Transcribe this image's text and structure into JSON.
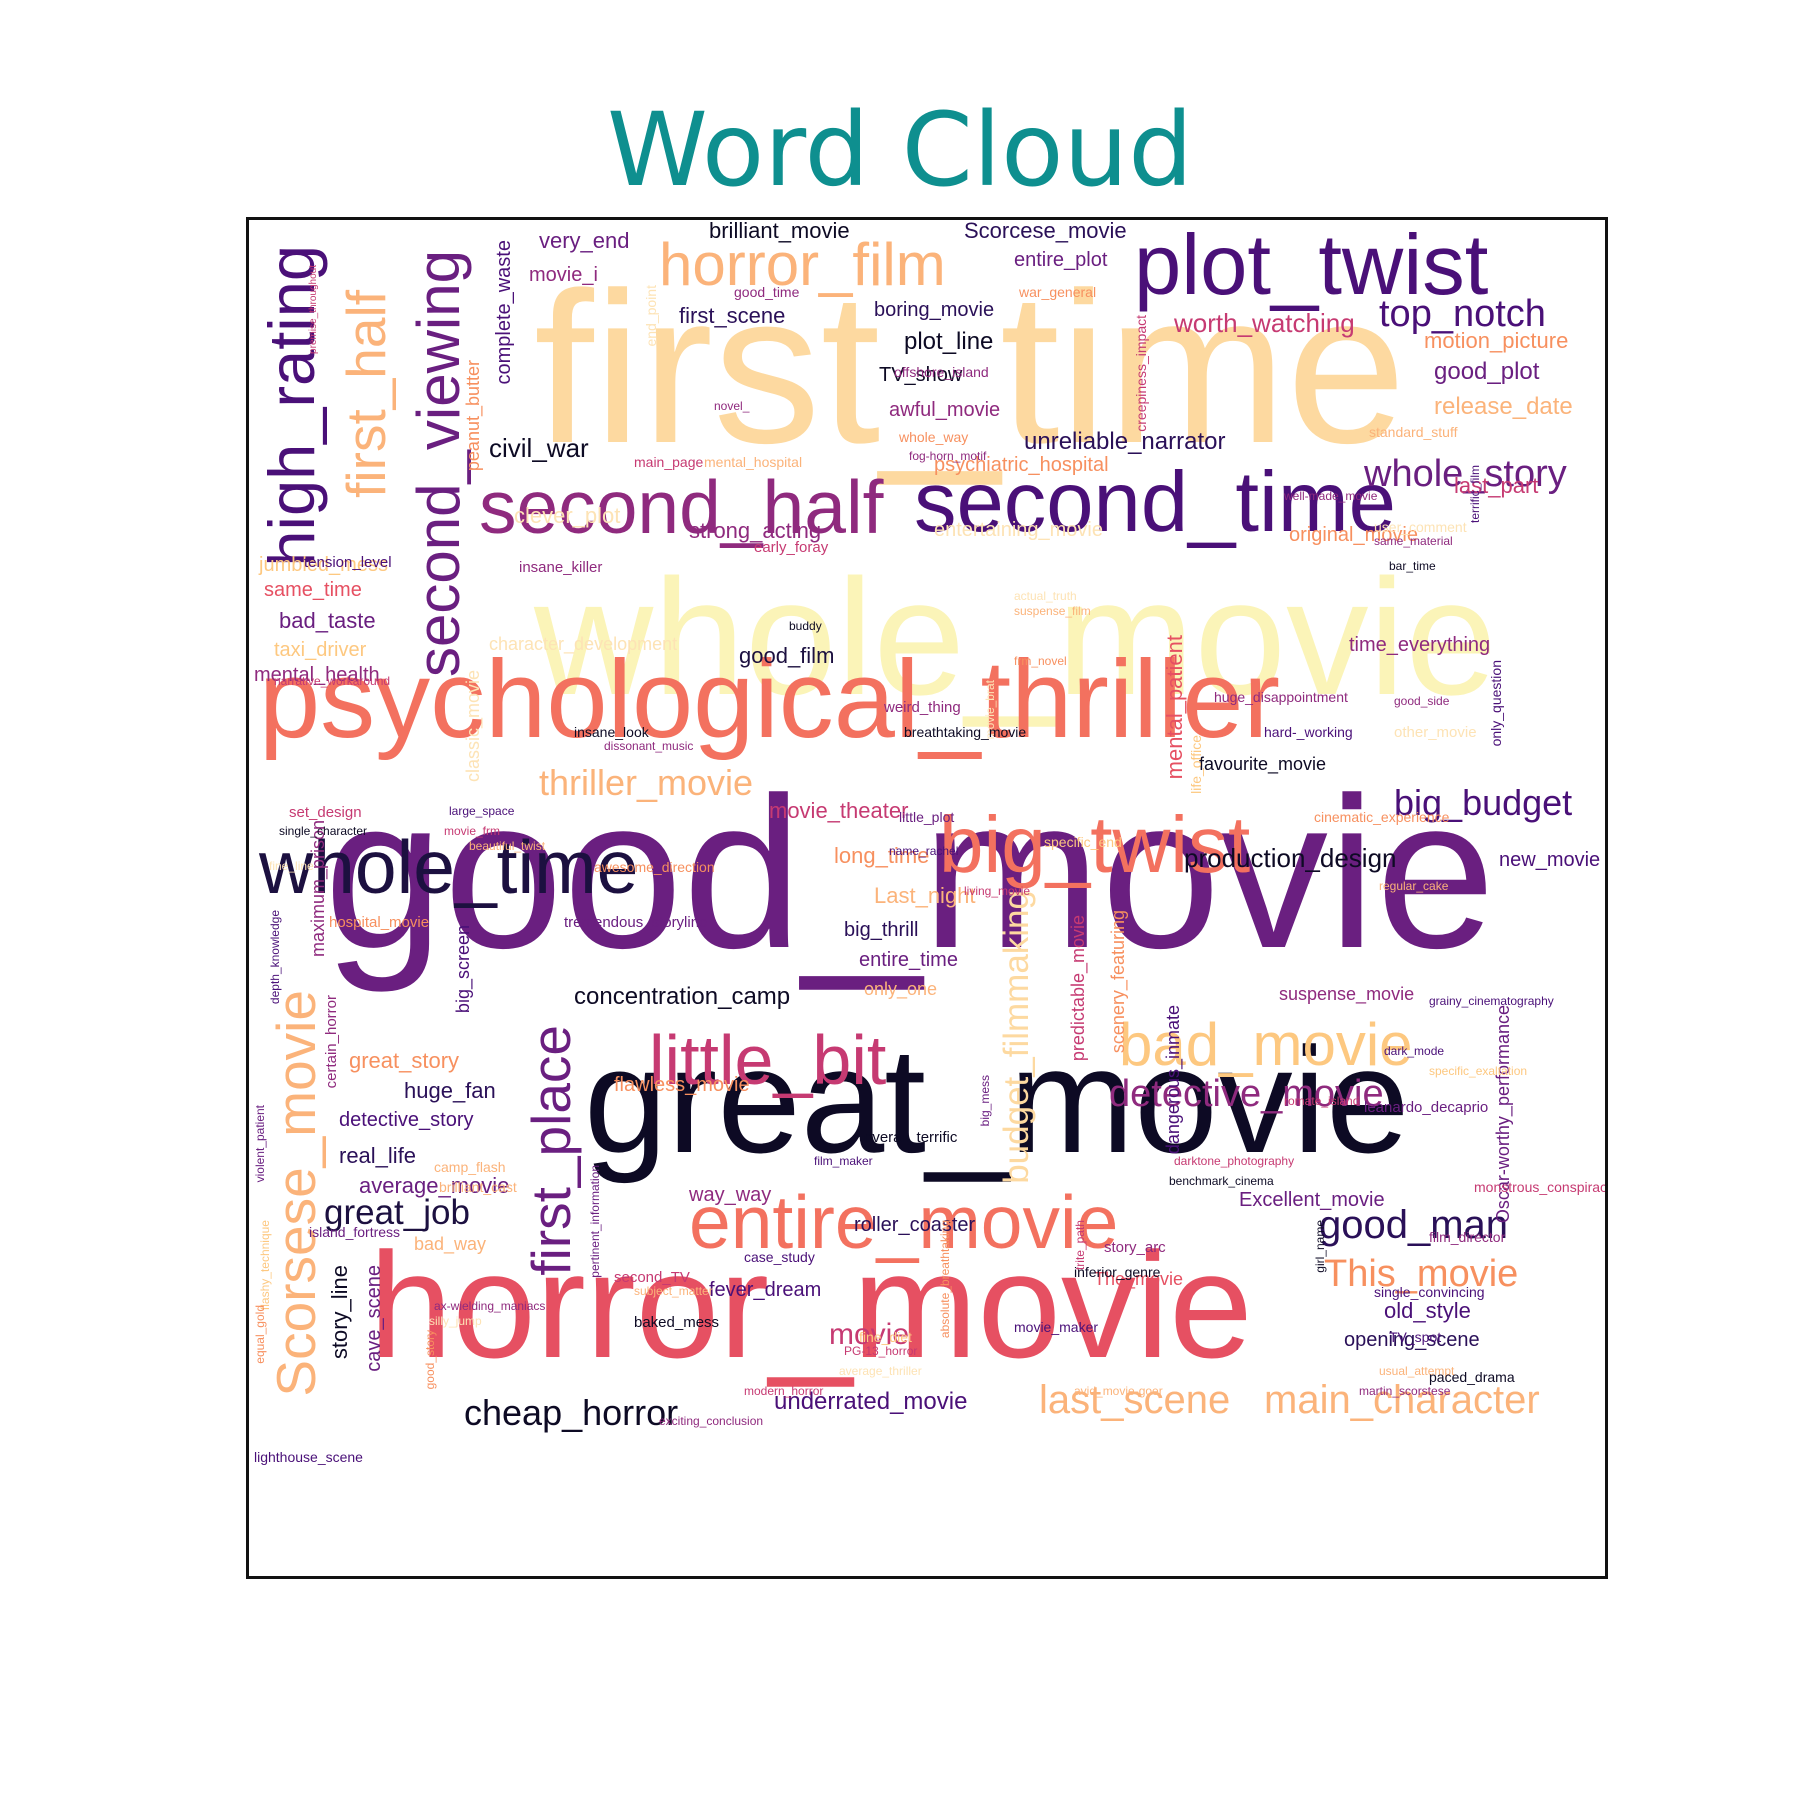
{
  "title": "Word Cloud",
  "colors": {
    "title": "#0e8f8f",
    "frame": "#111111",
    "background": "#ffffff"
  },
  "words": [
    {
      "text": "first_time",
      "color": "#fdd9a0"
    },
    {
      "text": "whole_movie",
      "color": "#fbf4b8"
    },
    {
      "text": "good_movie",
      "color": "#6a1f80"
    },
    {
      "text": "great_movie",
      "color": "#0d0a24"
    },
    {
      "text": "horror_movie",
      "color": "#e65062"
    },
    {
      "text": "psychological_thriller",
      "color": "#f3715f"
    },
    {
      "text": "plot_twist",
      "color": "#4a1078"
    },
    {
      "text": "second_time",
      "color": "#4a1078"
    },
    {
      "text": "second_half",
      "color": "#8f2a7e"
    },
    {
      "text": "whole_time",
      "color": "#1c1040"
    },
    {
      "text": "big_twist",
      "color": "#f3715f"
    },
    {
      "text": "entire_movie",
      "color": "#f3715f"
    },
    {
      "text": "little_bit",
      "color": "#c63a72"
    },
    {
      "text": "bad_movie",
      "color": "#fdc880"
    },
    {
      "text": "horror_film",
      "color": "#fbb37a"
    },
    {
      "text": "high_rating",
      "color": "#4a1078"
    },
    {
      "text": "first_half",
      "color": "#fbb37a"
    },
    {
      "text": "second_viewing",
      "color": "#6a1f80"
    },
    {
      "text": "first_place",
      "color": "#6a1f80"
    },
    {
      "text": "Scorsese_movie",
      "color": "#fbb37a"
    },
    {
      "text": "budget_filmmaking",
      "color": "#fdd9a0"
    },
    {
      "text": "detective_movie",
      "color": "#8f2a7e"
    },
    {
      "text": "top_notch",
      "color": "#4a1078"
    },
    {
      "text": "whole_story",
      "color": "#6a1f80"
    },
    {
      "text": "big_budget",
      "color": "#4a1078"
    },
    {
      "text": "good_man",
      "color": "#2a1058"
    },
    {
      "text": "This_movie",
      "color": "#f7905f"
    },
    {
      "text": "main_character",
      "color": "#fbb37a"
    },
    {
      "text": "last_scene",
      "color": "#fbb37a"
    },
    {
      "text": "thriller_movie",
      "color": "#fbb37a"
    },
    {
      "text": "cheap_horror",
      "color": "#0d0a24"
    },
    {
      "text": "great_job",
      "color": "#1c1040"
    },
    {
      "text": "movie",
      "color": "#c63a72"
    },
    {
      "text": "worth_watching",
      "color": "#c63a72"
    },
    {
      "text": "production_design",
      "color": "#0d0a24"
    },
    {
      "text": "concentration_camp",
      "color": "#0d0a24"
    },
    {
      "text": "very_end",
      "color": "#6a1f80"
    },
    {
      "text": "brilliant_movie",
      "color": "#0d0a24"
    },
    {
      "text": "Scorcese_movie",
      "color": "#2a1058"
    },
    {
      "text": "entire_plot",
      "color": "#6a1f80"
    },
    {
      "text": "movie_i",
      "color": "#8f2a7e"
    },
    {
      "text": "first_scene",
      "color": "#2a1058"
    },
    {
      "text": "boring_movie",
      "color": "#2a1058"
    },
    {
      "text": "plot_line",
      "color": "#0d0a24"
    },
    {
      "text": "TV_show",
      "color": "#0d0a24"
    },
    {
      "text": "awful_movie",
      "color": "#8f2a7e"
    },
    {
      "text": "motion_picture",
      "color": "#f7905f"
    },
    {
      "text": "good_plot",
      "color": "#6a1f80"
    },
    {
      "text": "release_date",
      "color": "#fbb37a"
    },
    {
      "text": "unreliable_narrator",
      "color": "#2a1058"
    },
    {
      "text": "civil_war",
      "color": "#0d0a24"
    },
    {
      "text": "psychiatric_hospital",
      "color": "#f7905f"
    },
    {
      "text": "last_part",
      "color": "#c63a72"
    },
    {
      "text": "original_movie",
      "color": "#f7905f"
    },
    {
      "text": "strong_acting",
      "color": "#8f2a7e"
    },
    {
      "text": "clever_plot",
      "color": "#fde3b5"
    },
    {
      "text": "entertaining_movie",
      "color": "#fde3b5"
    },
    {
      "text": "jumbled_mess",
      "color": "#fdc880"
    },
    {
      "text": "same_time",
      "color": "#e65062"
    },
    {
      "text": "bad_taste",
      "color": "#6a1f80"
    },
    {
      "text": "taxi_driver",
      "color": "#fdc880"
    },
    {
      "text": "mental_health",
      "color": "#8f2a7e"
    },
    {
      "text": "good_film",
      "color": "#1c1040"
    },
    {
      "text": "character_development",
      "color": "#fde3b5"
    },
    {
      "text": "time_everything",
      "color": "#8f2a7e"
    },
    {
      "text": "mental_patient",
      "color": "#e65062"
    },
    {
      "text": "favourite_movie",
      "color": "#0d0a24"
    },
    {
      "text": "movie_theater",
      "color": "#c63a72"
    },
    {
      "text": "long_time",
      "color": "#f7905f"
    },
    {
      "text": "Last_night",
      "color": "#fbb37a"
    },
    {
      "text": "big_thrill",
      "color": "#2a1058"
    },
    {
      "text": "entire_time",
      "color": "#6a1f80"
    },
    {
      "text": "only_one",
      "color": "#fbb37a"
    },
    {
      "text": "new_movie",
      "color": "#4a1078"
    },
    {
      "text": "suspense_movie",
      "color": "#8f2a7e"
    },
    {
      "text": "great_story",
      "color": "#f7905f"
    },
    {
      "text": "huge_fan",
      "color": "#2a1058"
    },
    {
      "text": "detective_story",
      "color": "#4a1078"
    },
    {
      "text": "real_life",
      "color": "#2a1058"
    },
    {
      "text": "average_movie",
      "color": "#6a1f80"
    },
    {
      "text": "flawless_movie",
      "color": "#f7905f"
    },
    {
      "text": "way_way",
      "color": "#8f2a7e"
    },
    {
      "text": "roller_coaster",
      "color": "#2a1058"
    },
    {
      "text": "Excellent_movie",
      "color": "#6a1f80"
    },
    {
      "text": "fever_dream",
      "color": "#4a1078"
    },
    {
      "text": "underrated_movie",
      "color": "#4a1078"
    },
    {
      "text": "old_style",
      "color": "#4a1078"
    },
    {
      "text": "opening_scene",
      "color": "#2a1058"
    },
    {
      "text": "The_movie",
      "color": "#e65062"
    },
    {
      "text": "bad_way",
      "color": "#fbb37a"
    },
    {
      "text": "story_line",
      "color": "#0d0a24"
    },
    {
      "text": "cave_scene",
      "color": "#6a1f80"
    },
    {
      "text": "complete_waste",
      "color": "#4a1078"
    },
    {
      "text": "peanut_butter",
      "color": "#f7905f"
    },
    {
      "text": "classic_movie",
      "color": "#fde3b5"
    },
    {
      "text": "predictable_movie",
      "color": "#c63a72"
    },
    {
      "text": "scenery_featuring",
      "color": "#f7905f"
    },
    {
      "text": "dangerous_inmate",
      "color": "#4a1078"
    },
    {
      "text": "maximum_prison",
      "color": "#8f2a7e"
    },
    {
      "text": "big_screen",
      "color": "#4a1078"
    },
    {
      "text": "certain_horror",
      "color": "#8f2a7e"
    },
    {
      "text": "Oscar-worthy_performance",
      "color": "#6a1f80"
    },
    {
      "text": "good_time",
      "color": "#8f2a7e"
    },
    {
      "text": "war_general",
      "color": "#f7905f"
    },
    {
      "text": "end_point",
      "color": "#fde3b5"
    },
    {
      "text": "offshore_island",
      "color": "#8f2a7e"
    },
    {
      "text": "creepiness_impact",
      "color": "#c63a72"
    },
    {
      "text": "novel_",
      "color": "#8f2a7e"
    },
    {
      "text": "whole_way",
      "color": "#f7905f"
    },
    {
      "text": "fog-horn_motif",
      "color": "#8f2a7e"
    },
    {
      "text": "standard_stuff",
      "color": "#fbb37a"
    },
    {
      "text": "main_page",
      "color": "#c63a72"
    },
    {
      "text": "mental_hospital",
      "color": "#fbb37a"
    },
    {
      "text": "well-made_movie",
      "color": "#8f2a7e"
    },
    {
      "text": "terrific_film",
      "color": "#4a1078"
    },
    {
      "text": "user_comment",
      "color": "#fde3b5"
    },
    {
      "text": "same_material",
      "color": "#8f2a7e"
    },
    {
      "text": "bar_time",
      "color": "#0d0a24"
    },
    {
      "text": "early_foray",
      "color": "#c63a72"
    },
    {
      "text": "insane_killer",
      "color": "#8f2a7e"
    },
    {
      "text": "tension_level",
      "color": "#4a1078"
    },
    {
      "text": "premise_throughout",
      "color": "#c63a72"
    },
    {
      "text": "actual_truth",
      "color": "#fde3b5"
    },
    {
      "text": "suspense_film",
      "color": "#fbb37a"
    },
    {
      "text": "buddy",
      "color": "#0d0a24"
    },
    {
      "text": "movie_brat",
      "color": "#fde3b5"
    },
    {
      "text": "frm_novel",
      "color": "#f7905f"
    },
    {
      "text": "only_question",
      "color": "#4a1078"
    },
    {
      "text": "good_side",
      "color": "#8f2a7e"
    },
    {
      "text": "narrative_workaround",
      "color": "#c63a72"
    },
    {
      "text": "insane_look",
      "color": "#0d0a24"
    },
    {
      "text": "dissonant_music",
      "color": "#8f2a7e"
    },
    {
      "text": "weird_thing",
      "color": "#8f2a7e"
    },
    {
      "text": "breathtaking_movie",
      "color": "#0d0a24"
    },
    {
      "text": "huge_disappointment",
      "color": "#8f2a7e"
    },
    {
      "text": "hard-_working",
      "color": "#4a1078"
    },
    {
      "text": "other_movie",
      "color": "#fde3b5"
    },
    {
      "text": "life_office",
      "color": "#fdc880"
    },
    {
      "text": "set_design",
      "color": "#c63a72"
    },
    {
      "text": "large_space",
      "color": "#4a1078"
    },
    {
      "text": "single_character",
      "color": "#0d0a24"
    },
    {
      "text": "movie_frm",
      "color": "#c63a72"
    },
    {
      "text": "beautiful_twist",
      "color": "#fbb37a"
    },
    {
      "text": "fine_line",
      "color": "#fde3b5"
    },
    {
      "text": "little_plot",
      "color": "#6a1f80"
    },
    {
      "text": "specific_end",
      "color": "#fdc880"
    },
    {
      "text": "cinematic_experience",
      "color": "#f7905f"
    },
    {
      "text": "name_rachel",
      "color": "#4a1078"
    },
    {
      "text": "awesome_direction",
      "color": "#f7905f"
    },
    {
      "text": "living_movie",
      "color": "#c63a72"
    },
    {
      "text": "regular_cake",
      "color": "#fbb37a"
    },
    {
      "text": "hospital_movie",
      "color": "#f7905f"
    },
    {
      "text": "tremendous_storyline",
      "color": "#6a1f80"
    },
    {
      "text": "depth_knowledge",
      "color": "#4a1078"
    },
    {
      "text": "grainy_cinematography",
      "color": "#4a1078"
    },
    {
      "text": "dark_mode",
      "color": "#4a1078"
    },
    {
      "text": "specific_exaltation",
      "color": "#fdc880"
    },
    {
      "text": "violent_patient",
      "color": "#6a1f80"
    },
    {
      "text": "big_mess",
      "color": "#6a1f80"
    },
    {
      "text": "romate_island",
      "color": "#c63a72"
    },
    {
      "text": "leanardo_decaprio",
      "color": "#6a1f80"
    },
    {
      "text": "overall_terrific",
      "color": "#0d0a24"
    },
    {
      "text": "film_maker",
      "color": "#4a1078"
    },
    {
      "text": "pertinent_information",
      "color": "#6a1f80"
    },
    {
      "text": "darktone_photography",
      "color": "#c63a72"
    },
    {
      "text": "benchmark_cinema",
      "color": "#0d0a24"
    },
    {
      "text": "monstrous_conspiracy",
      "color": "#c63a72"
    },
    {
      "text": "camp_flash",
      "color": "#fbb37a"
    },
    {
      "text": "brilliant_cast",
      "color": "#fbb37a"
    },
    {
      "text": "trite_path",
      "color": "#c63a72"
    },
    {
      "text": "girl_name",
      "color": "#0d0a24"
    },
    {
      "text": "flashy_technique",
      "color": "#fdc880"
    },
    {
      "text": "island_fortress",
      "color": "#6a1f80"
    },
    {
      "text": "absolute_breathtaking",
      "color": "#f7905f"
    },
    {
      "text": "story_arc",
      "color": "#8f2a7e"
    },
    {
      "text": "film_director",
      "color": "#8f2a7e"
    },
    {
      "text": "case_study",
      "color": "#4a1078"
    },
    {
      "text": "inferior_genre",
      "color": "#0d0a24"
    },
    {
      "text": "second_TV",
      "color": "#c63a72"
    },
    {
      "text": "subject_matter",
      "color": "#fbb37a"
    },
    {
      "text": "single_convincing",
      "color": "#4a1078"
    },
    {
      "text": "equal_gold",
      "color": "#f7905f"
    },
    {
      "text": "ax-wielding_maniacs",
      "color": "#8f2a7e"
    },
    {
      "text": "silly_jump",
      "color": "#fde3b5"
    },
    {
      "text": "baked_mess",
      "color": "#0d0a24"
    },
    {
      "text": "movie_maker",
      "color": "#4a1078"
    },
    {
      "text": "fine_diet",
      "color": "#fdc880"
    },
    {
      "text": "TV_spot",
      "color": "#4a1078"
    },
    {
      "text": "usual_attempt",
      "color": "#fbb37a"
    },
    {
      "text": "paced_drama",
      "color": "#0d0a24"
    },
    {
      "text": "good_story",
      "color": "#f7905f"
    },
    {
      "text": "average_thriller",
      "color": "#fde3b5"
    },
    {
      "text": "PG-13_horror",
      "color": "#c63a72"
    },
    {
      "text": "modern_horror",
      "color": "#c63a72"
    },
    {
      "text": "avid_movie-goer",
      "color": "#fbb37a"
    },
    {
      "text": "martin_scorstese",
      "color": "#8f2a7e"
    },
    {
      "text": "lighthouse_scene",
      "color": "#4a1078"
    },
    {
      "text": "exciting_conclusion",
      "color": "#8f2a7e"
    },
    {
      "text": "brilliant_mention",
      "color": "#fde3b5"
    }
  ]
}
